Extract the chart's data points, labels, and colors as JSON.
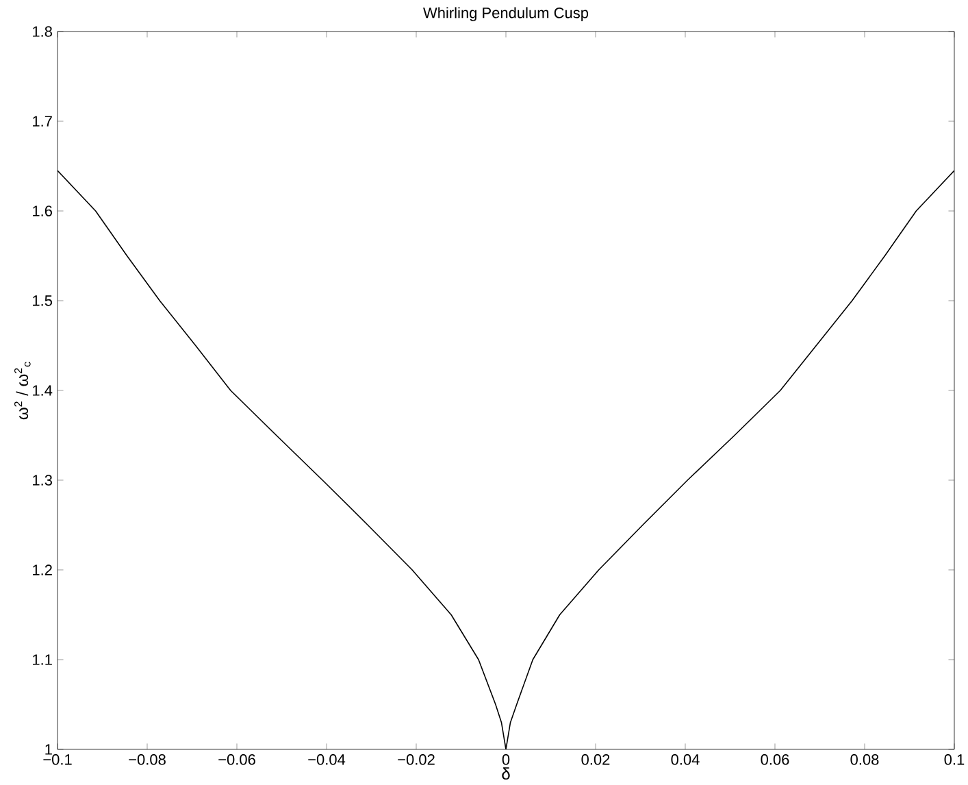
{
  "chart_data": {
    "type": "line",
    "title": "Whirling Pendulum Cusp",
    "xlabel": "δ",
    "ylabel": "ω$^{2}$ / ω$^{2}$$_{c}$",
    "series": [
      {
        "color": "#000000",
        "x": [
          -0.1,
          -0.0915,
          -0.0845,
          -0.0772,
          -0.0692,
          -0.0614,
          -0.0512,
          -0.0409,
          -0.0308,
          -0.0209,
          -0.0122,
          -0.0061,
          -0.0023,
          -0.001,
          0,
          0.001,
          0.0024,
          0.006,
          0.012,
          0.0207,
          0.0305,
          0.0405,
          0.051,
          0.0612,
          0.0692,
          0.0772,
          0.0845,
          0.0915,
          0.1
        ],
        "values": [
          1.645,
          1.6,
          1.55,
          1.5,
          1.45,
          1.4,
          1.35,
          1.3,
          1.25,
          1.2,
          1.15,
          1.1,
          1.05,
          1.03,
          1,
          1.03,
          1.05,
          1.1,
          1.15,
          1.2,
          1.25,
          1.3,
          1.35,
          1.4,
          1.45,
          1.5,
          1.55,
          1.6,
          1.645
        ]
      }
    ],
    "xlim": [
      -0.1,
      0.1
    ],
    "ylim": [
      1,
      1.8
    ],
    "xticks": [
      {
        "value": -0.1,
        "label": "−0.1"
      },
      {
        "value": -0.08,
        "label": "−0.08"
      },
      {
        "value": -0.06,
        "label": "−0.06"
      },
      {
        "value": -0.04,
        "label": "−0.04"
      },
      {
        "value": -0.02,
        "label": "−0.02"
      },
      0,
      0.02,
      0.04,
      0.06,
      0.08,
      0.1
    ],
    "yticks": [
      1,
      1.1,
      1.2,
      1.3,
      1.4,
      1.5,
      1.6,
      1.7,
      1.8
    ],
    "grid": false,
    "marker": "none",
    "line_style": "solid"
  }
}
